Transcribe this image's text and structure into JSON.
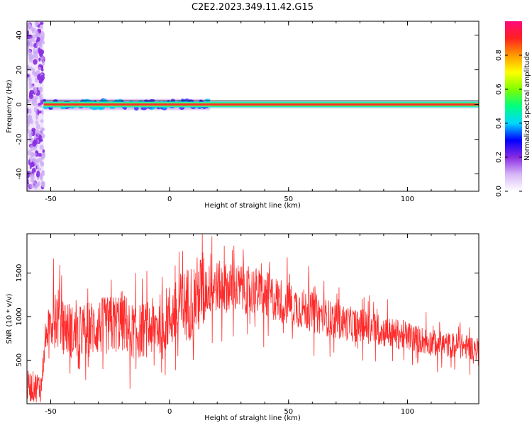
{
  "title": "C2E2.2023.349.11.42.G15",
  "chart_data": [
    {
      "type": "heatmap",
      "xlabel": "Height of straight line (km)",
      "ylabel": "Frequency (Hz)",
      "xlim": [
        -60,
        130
      ],
      "ylim": [
        -50,
        48
      ],
      "xticks": [
        -50,
        0,
        50,
        100
      ],
      "yticks": [
        -40,
        -20,
        0,
        20,
        40
      ],
      "colorbar": {
        "label": "Normalized spectral amplitude",
        "range": [
          0,
          1
        ],
        "ticks": [
          "0.0",
          "0.2",
          "0.4",
          "0.6",
          "0.8"
        ],
        "colormap": [
          "#ffffff",
          "#d7b6f7",
          "#8a2be2",
          "#0000ff",
          "#00d7ff",
          "#00ff80",
          "#80ff00",
          "#ffff00",
          "#ff9900",
          "#ff2020",
          "#ff0a7a"
        ]
      },
      "features": [
        {
          "name": "broadband noise",
          "x": [
            -60,
            -53
          ],
          "freq_range": [
            -50,
            48
          ],
          "amplitude": 0.15
        },
        {
          "name": "signal line",
          "x": [
            -53,
            130
          ],
          "freq": 0,
          "amplitude": 0.9
        }
      ]
    },
    {
      "type": "line",
      "xlabel": "Height of straight line (km)",
      "ylabel": "SNR (10 * v/v)",
      "xlim": [
        -60,
        130
      ],
      "ylim": [
        0,
        1950
      ],
      "xticks": [
        -50,
        0,
        50,
        100
      ],
      "yticks": [
        500,
        1000,
        1500
      ],
      "color": "#ff2a2a",
      "series": [
        {
          "x": [
            -60,
            -54,
            -53,
            -51,
            -49,
            -45,
            -40,
            -35,
            -30,
            -25,
            -20,
            -15,
            -10,
            -5,
            0,
            5,
            10,
            15,
            20,
            25,
            30,
            35,
            40,
            45,
            50,
            55,
            60,
            65,
            70,
            75,
            80,
            85,
            90,
            95,
            100,
            105,
            110,
            115,
            120,
            125,
            130
          ],
          "values": [
            200,
            190,
            520,
            900,
            1050,
            920,
            800,
            850,
            880,
            900,
            950,
            820,
            850,
            900,
            1000,
            1100,
            1200,
            1300,
            1350,
            1330,
            1320,
            1300,
            1250,
            1200,
            1150,
            1100,
            1050,
            1000,
            950,
            920,
            900,
            870,
            830,
            800,
            780,
            740,
            700,
            680,
            670,
            650,
            630
          ]
        }
      ]
    }
  ]
}
